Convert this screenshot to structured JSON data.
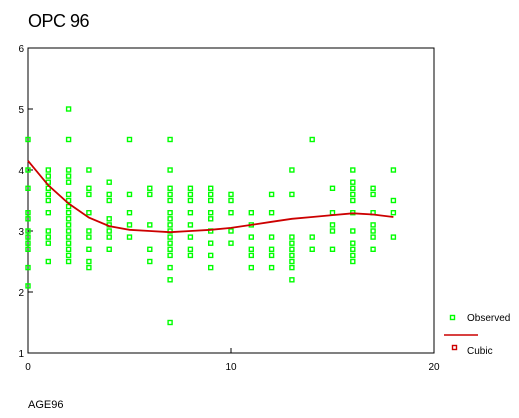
{
  "chart_data": {
    "type": "scatter",
    "title": "OPC 96",
    "xlabel": "AGE96",
    "ylabel": "",
    "xlim": [
      0,
      20
    ],
    "ylim": [
      1,
      6
    ],
    "xticks": [
      "0",
      "10",
      "20"
    ],
    "yticks": [
      "1",
      "2",
      "3",
      "4",
      "5",
      "6"
    ],
    "grid": false,
    "legend_position": "bottom-right",
    "series": [
      {
        "name": "Observed",
        "type": "scatter",
        "color": "#00ff00",
        "marker": "hollow-square",
        "points": [
          [
            0,
            2.1
          ],
          [
            0,
            2.4
          ],
          [
            0,
            2.7
          ],
          [
            0,
            2.8
          ],
          [
            0,
            2.9
          ],
          [
            0,
            3.0
          ],
          [
            0,
            3.2
          ],
          [
            0,
            3.3
          ],
          [
            0,
            3.7
          ],
          [
            0,
            4.0
          ],
          [
            0,
            4.5
          ],
          [
            1,
            2.5
          ],
          [
            1,
            2.8
          ],
          [
            1,
            2.9
          ],
          [
            1,
            3.0
          ],
          [
            1,
            3.3
          ],
          [
            1,
            3.5
          ],
          [
            1,
            3.6
          ],
          [
            1,
            3.7
          ],
          [
            1,
            3.8
          ],
          [
            1,
            3.9
          ],
          [
            1,
            4.0
          ],
          [
            2,
            2.5
          ],
          [
            2,
            2.6
          ],
          [
            2,
            2.7
          ],
          [
            2,
            2.8
          ],
          [
            2,
            2.9
          ],
          [
            2,
            3.0
          ],
          [
            2,
            3.1
          ],
          [
            2,
            3.2
          ],
          [
            2,
            3.3
          ],
          [
            2,
            3.4
          ],
          [
            2,
            3.5
          ],
          [
            2,
            3.6
          ],
          [
            2,
            3.8
          ],
          [
            2,
            3.9
          ],
          [
            2,
            4.0
          ],
          [
            2,
            4.5
          ],
          [
            2,
            5.0
          ],
          [
            3,
            2.4
          ],
          [
            3,
            2.5
          ],
          [
            3,
            2.7
          ],
          [
            3,
            2.9
          ],
          [
            3,
            3.0
          ],
          [
            3,
            3.3
          ],
          [
            3,
            3.6
          ],
          [
            3,
            3.7
          ],
          [
            3,
            4.0
          ],
          [
            4,
            2.7
          ],
          [
            4,
            2.9
          ],
          [
            4,
            3.0
          ],
          [
            4,
            3.1
          ],
          [
            4,
            3.2
          ],
          [
            4,
            3.5
          ],
          [
            4,
            3.6
          ],
          [
            4,
            3.8
          ],
          [
            5,
            2.9
          ],
          [
            5,
            3.1
          ],
          [
            5,
            3.3
          ],
          [
            5,
            3.6
          ],
          [
            5,
            4.5
          ],
          [
            6,
            2.5
          ],
          [
            6,
            2.7
          ],
          [
            6,
            3.1
          ],
          [
            6,
            3.6
          ],
          [
            6,
            3.7
          ],
          [
            7,
            1.5
          ],
          [
            7,
            2.2
          ],
          [
            7,
            2.4
          ],
          [
            7,
            2.6
          ],
          [
            7,
            2.7
          ],
          [
            7,
            2.8
          ],
          [
            7,
            2.9
          ],
          [
            7,
            3.0
          ],
          [
            7,
            3.1
          ],
          [
            7,
            3.2
          ],
          [
            7,
            3.3
          ],
          [
            7,
            3.5
          ],
          [
            7,
            3.6
          ],
          [
            7,
            3.7
          ],
          [
            7,
            4.0
          ],
          [
            7,
            4.5
          ],
          [
            8,
            2.6
          ],
          [
            8,
            2.7
          ],
          [
            8,
            2.9
          ],
          [
            8,
            3.1
          ],
          [
            8,
            3.3
          ],
          [
            8,
            3.5
          ],
          [
            8,
            3.6
          ],
          [
            8,
            3.7
          ],
          [
            9,
            2.4
          ],
          [
            9,
            2.6
          ],
          [
            9,
            2.8
          ],
          [
            9,
            3.0
          ],
          [
            9,
            3.2
          ],
          [
            9,
            3.3
          ],
          [
            9,
            3.5
          ],
          [
            9,
            3.6
          ],
          [
            9,
            3.7
          ],
          [
            10,
            2.8
          ],
          [
            10,
            3.0
          ],
          [
            10,
            3.3
          ],
          [
            10,
            3.5
          ],
          [
            10,
            3.6
          ],
          [
            11,
            2.4
          ],
          [
            11,
            2.6
          ],
          [
            11,
            2.7
          ],
          [
            11,
            2.9
          ],
          [
            11,
            3.1
          ],
          [
            11,
            3.3
          ],
          [
            12,
            2.4
          ],
          [
            12,
            2.6
          ],
          [
            12,
            2.7
          ],
          [
            12,
            2.9
          ],
          [
            12,
            3.3
          ],
          [
            12,
            3.6
          ],
          [
            13,
            2.2
          ],
          [
            13,
            2.4
          ],
          [
            13,
            2.5
          ],
          [
            13,
            2.6
          ],
          [
            13,
            2.7
          ],
          [
            13,
            2.8
          ],
          [
            13,
            2.9
          ],
          [
            13,
            3.6
          ],
          [
            13,
            4.0
          ],
          [
            14,
            2.7
          ],
          [
            14,
            2.9
          ],
          [
            14,
            4.5
          ],
          [
            15,
            2.7
          ],
          [
            15,
            3.0
          ],
          [
            15,
            3.1
          ],
          [
            15,
            3.3
          ],
          [
            15,
            3.7
          ],
          [
            16,
            2.5
          ],
          [
            16,
            2.6
          ],
          [
            16,
            2.7
          ],
          [
            16,
            2.8
          ],
          [
            16,
            3.0
          ],
          [
            16,
            3.3
          ],
          [
            16,
            3.5
          ],
          [
            16,
            3.6
          ],
          [
            16,
            3.7
          ],
          [
            16,
            3.8
          ],
          [
            16,
            4.0
          ],
          [
            17,
            2.7
          ],
          [
            17,
            2.9
          ],
          [
            17,
            3.0
          ],
          [
            17,
            3.1
          ],
          [
            17,
            3.3
          ],
          [
            17,
            3.6
          ],
          [
            17,
            3.7
          ],
          [
            18,
            2.9
          ],
          [
            18,
            3.3
          ],
          [
            18,
            3.5
          ],
          [
            18,
            4.0
          ]
        ]
      },
      {
        "name": "Cubic",
        "type": "line",
        "color": "#cc0000",
        "x": [
          0,
          1,
          2,
          3,
          4,
          5,
          6,
          7,
          8,
          9,
          10,
          11,
          12,
          13,
          14,
          15,
          16,
          17,
          18
        ],
        "y": [
          4.15,
          3.75,
          3.45,
          3.22,
          3.08,
          3.02,
          3.0,
          2.98,
          3.0,
          3.02,
          3.05,
          3.1,
          3.15,
          3.2,
          3.23,
          3.26,
          3.29,
          3.27,
          3.23
        ]
      }
    ]
  }
}
